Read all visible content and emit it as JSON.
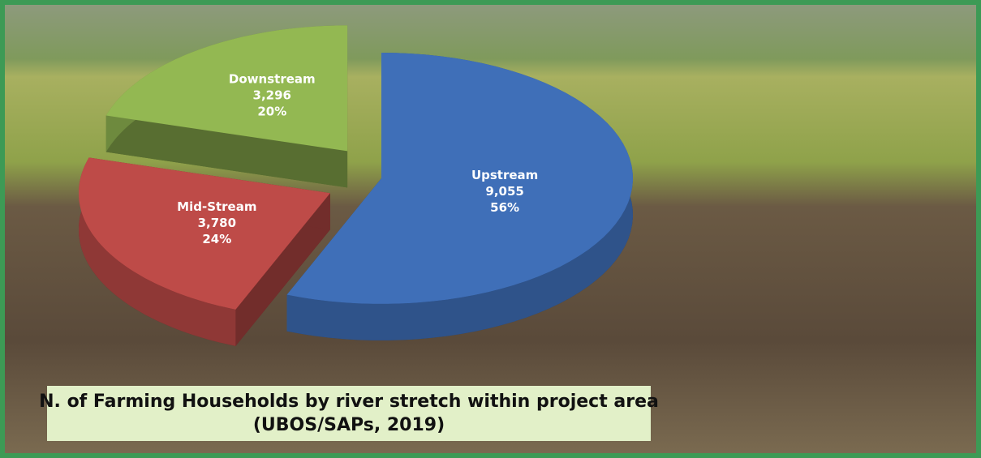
{
  "chart_data": {
    "type": "pie3d",
    "title": "N. of Farming Households by river stretch within project area",
    "subtitle": "(UBOS/SAPs, 2019)",
    "categories": [
      "Upstream",
      "Mid-Stream",
      "Downstream"
    ],
    "values": [
      9055,
      3780,
      3296
    ],
    "value_labels": [
      "9,055",
      "3,780",
      "3,296"
    ],
    "shares": [
      56,
      24,
      20
    ],
    "share_labels": [
      "56%",
      "24%",
      "20%"
    ],
    "colors": [
      "#3f6fb8",
      "#be4b48",
      "#93b852"
    ]
  }
}
